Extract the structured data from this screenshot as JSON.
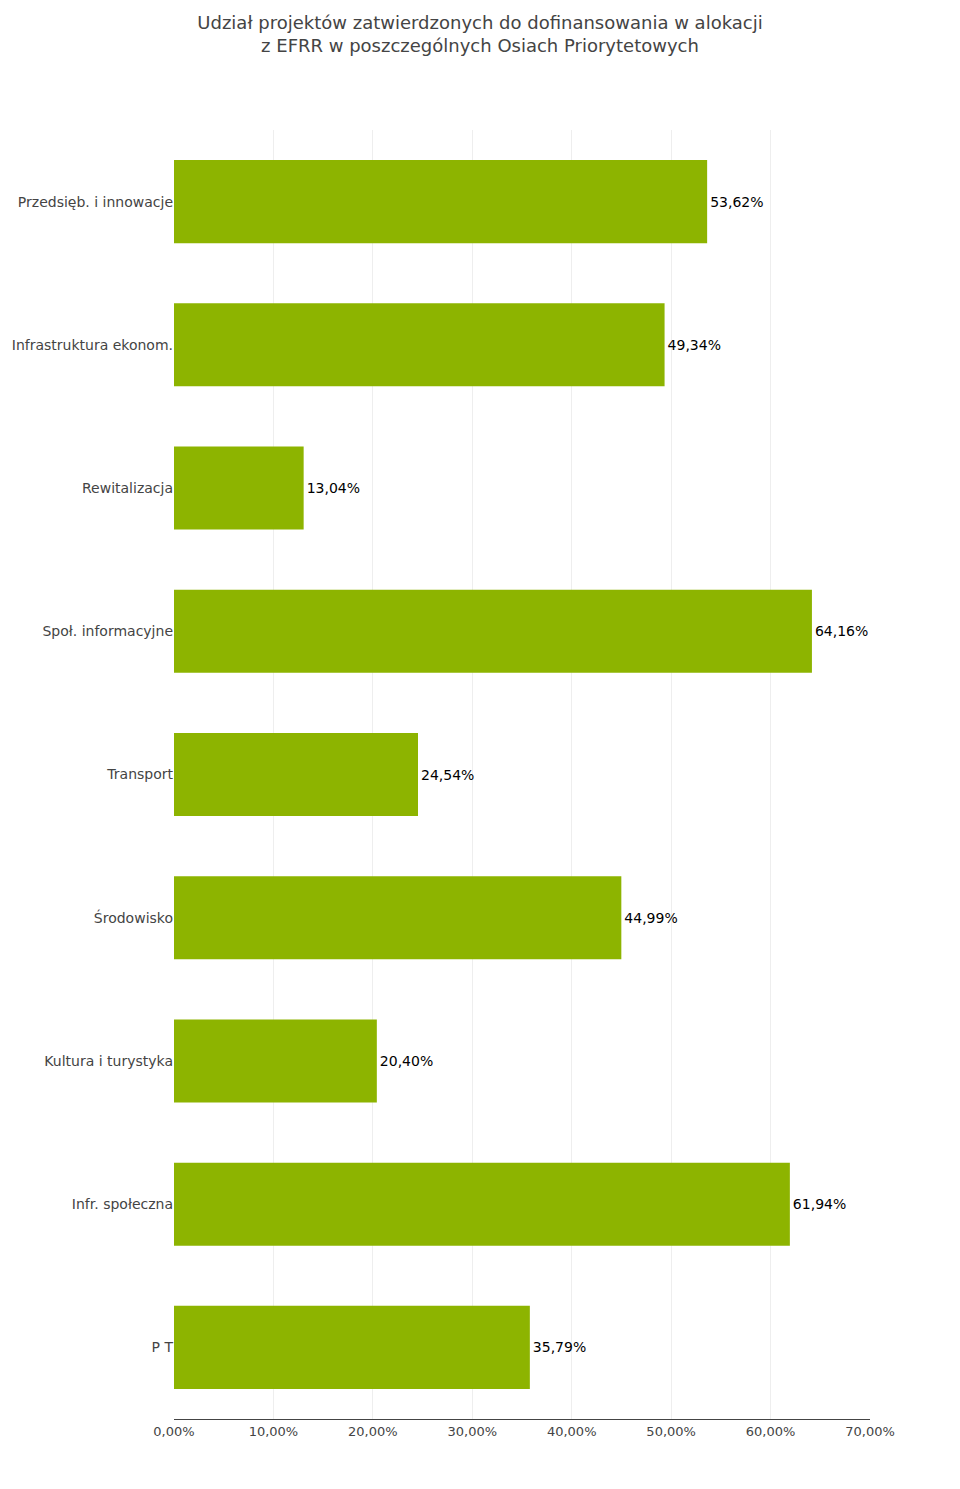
{
  "chart_data": {
    "type": "bar",
    "orientation": "horizontal",
    "title": "Udział projektów zatwierdzonych do dofinansowania w alokacji\nz EFRR w poszczególnych Osiach Priorytetowych",
    "categories": [
      "Przedsięb. i innowacje",
      "Infrastruktura ekonom.",
      "Rewitalizacja",
      "Społ. informacyjne",
      "Transport",
      "Środowisko",
      "Kultura i turystyka",
      "Infr. społeczna",
      "P T"
    ],
    "values": [
      53.62,
      49.34,
      13.04,
      64.16,
      24.54,
      44.99,
      20.4,
      61.94,
      35.79
    ],
    "value_labels": [
      "53,62%",
      "49,34%",
      "13,04%",
      "64,16%",
      "24,54%",
      "44,99%",
      "20,40%",
      "61,94%",
      "35,79%"
    ],
    "data_labels": true,
    "color": "#8DB400",
    "xlim": [
      0,
      70
    ],
    "xticks": [
      {
        "value": 0,
        "label": "0,00%"
      },
      {
        "value": 10,
        "label": "10,00%"
      },
      {
        "value": 20,
        "label": "20,00%"
      },
      {
        "value": 30,
        "label": "30,00%"
      },
      {
        "value": 40,
        "label": "40,00%"
      },
      {
        "value": 50,
        "label": "50,00%"
      },
      {
        "value": 60,
        "label": "60,00%"
      },
      {
        "value": 70,
        "label": "70,00%"
      }
    ],
    "grid": true
  }
}
